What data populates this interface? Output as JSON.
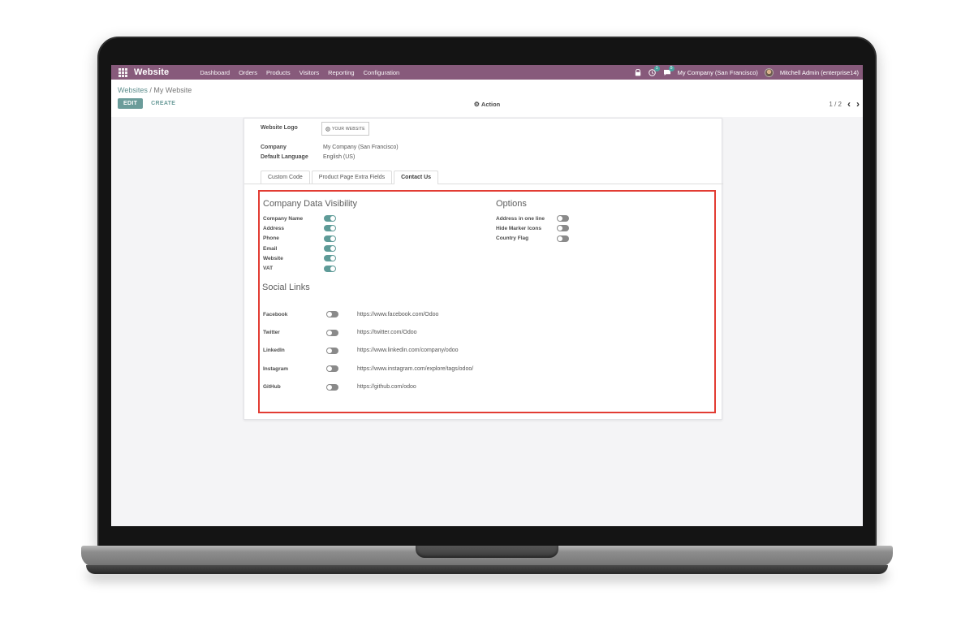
{
  "colors": {
    "brand_purple": "#875a7b",
    "accent_teal": "#6b9c9a",
    "link_teal": "#5f8f8e",
    "toggle_on": "#5f9b98",
    "toggle_off": "#8a8a8a",
    "badge_teal": "#4aa3a0",
    "highlight_red": "#e23c33"
  },
  "navbar": {
    "app_name": "Website",
    "menu_items": [
      "Dashboard",
      "Orders",
      "Products",
      "Visitors",
      "Reporting",
      "Configuration"
    ],
    "activity_badge": "1",
    "message_badge": "5",
    "company": "My Company (San Francisco)",
    "user": "Mitchell Admin (enterprise14)"
  },
  "control_panel": {
    "breadcrumb_parent": "Websites",
    "breadcrumb_separator": " / ",
    "breadcrumb_current": "My Website",
    "edit_label": "EDIT",
    "create_label": "CREATE",
    "action_label": "Action",
    "pager_count": "1 / 2"
  },
  "icons": {
    "gear": "⚙",
    "chevron_left": "‹",
    "chevron_right": "›"
  },
  "form": {
    "logo_label": "Website Logo",
    "logo_text": "YOUR WEBSITE",
    "company_label": "Company",
    "company_value": "My Company (San Francisco)",
    "language_label": "Default Language",
    "language_value": "English (US)",
    "tabs": [
      {
        "label": "Custom Code",
        "active": false
      },
      {
        "label": "Product Page Extra Fields",
        "active": false
      },
      {
        "label": "Contact Us",
        "active": true
      }
    ]
  },
  "contact_us": {
    "visibility": {
      "title": "Company Data Visibility",
      "items": [
        {
          "label": "Company Name",
          "on": true
        },
        {
          "label": "Address",
          "on": true
        },
        {
          "label": "Phone",
          "on": true
        },
        {
          "label": "Email",
          "on": true
        },
        {
          "label": "Website",
          "on": true
        },
        {
          "label": "VAT",
          "on": true
        }
      ]
    },
    "options": {
      "title": "Options",
      "items": [
        {
          "label": "Address in one line",
          "on": false
        },
        {
          "label": "Hide Marker Icons",
          "on": false
        },
        {
          "label": "Country Flag",
          "on": false
        }
      ]
    },
    "social": {
      "title": "Social Links",
      "items": [
        {
          "label": "Facebook",
          "on": false,
          "url": "https://www.facebook.com/Odoo"
        },
        {
          "label": "Twitter",
          "on": false,
          "url": "https://twitter.com/Odoo"
        },
        {
          "label": "LinkedIn",
          "on": false,
          "url": "https://www.linkedin.com/company/odoo"
        },
        {
          "label": "Instagram",
          "on": false,
          "url": "https://www.instagram.com/explore/tags/odoo/"
        },
        {
          "label": "GitHub",
          "on": false,
          "url": "https://github.com/odoo"
        }
      ]
    }
  }
}
